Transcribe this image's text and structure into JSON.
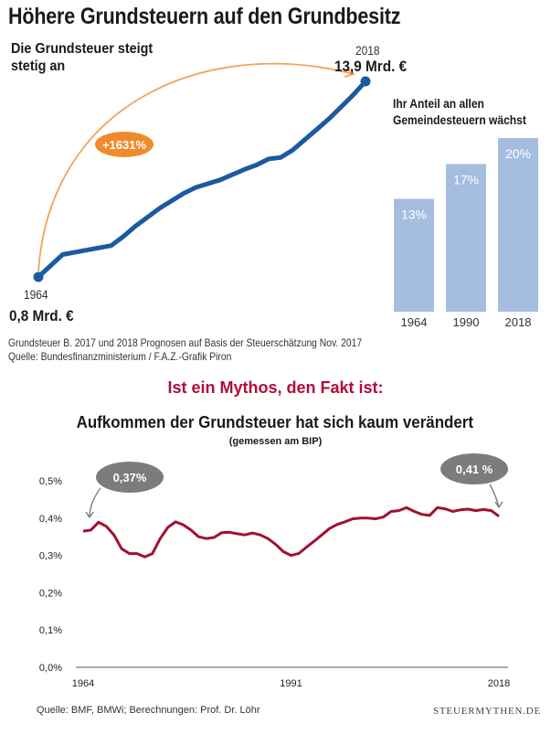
{
  "header": {
    "title": "Höhere Grundsteuern auf den Grundbesitz"
  },
  "chart_data": [
    {
      "type": "line",
      "title": "Die Grundsteuer steigt\nstetig an",
      "x": [
        1964,
        1968,
        1972,
        1976,
        1978,
        1980,
        1984,
        1988,
        1990,
        1994,
        1998,
        2000,
        2002,
        2004,
        2006,
        2008,
        2010,
        2012,
        2014,
        2016,
        2018
      ],
      "values": [
        0.8,
        2.3,
        2.6,
        2.9,
        3.5,
        4.2,
        5.4,
        6.4,
        6.8,
        7.3,
        8.0,
        8.3,
        8.7,
        8.8,
        9.3,
        10.0,
        10.7,
        11.4,
        12.2,
        13.0,
        13.9
      ],
      "unit": "Mrd. €",
      "start": {
        "year": "1964",
        "label": "0,8 Mrd. €"
      },
      "end": {
        "year": "2018",
        "label": "13,9 Mrd. €"
      },
      "annotation": "+1631%",
      "colors": {
        "line": "#1a5aa0",
        "arrow": "#f2a456",
        "badge": "#ef8b2c"
      }
    },
    {
      "type": "bar",
      "title": "Ihr Anteil an allen\nGemeindesteuern wächst",
      "categories": [
        "1964",
        "1990",
        "2018"
      ],
      "values": [
        13,
        17,
        20
      ],
      "labels": [
        "13%",
        "17%",
        "20%"
      ],
      "unit": "%",
      "colors": {
        "bar": "#a6bde2",
        "label": "#ffffff"
      }
    },
    {
      "type": "line",
      "title": "Aufkommen der Grundsteuer hat sich kaum verändert",
      "subtitle": "(gemessen am BIP)",
      "x": [
        1964,
        1965,
        1966,
        1967,
        1968,
        1969,
        1970,
        1971,
        1972,
        1973,
        1974,
        1975,
        1976,
        1977,
        1978,
        1979,
        1980,
        1981,
        1982,
        1983,
        1984,
        1985,
        1986,
        1987,
        1988,
        1989,
        1990,
        1991,
        1992,
        1993,
        1994,
        1995,
        1996,
        1997,
        1998,
        1999,
        2000,
        2001,
        2002,
        2003,
        2004,
        2005,
        2006,
        2007,
        2008,
        2009,
        2010,
        2011,
        2012,
        2013,
        2014,
        2015,
        2016,
        2017,
        2018
      ],
      "values": [
        0.365,
        0.368,
        0.389,
        0.378,
        0.355,
        0.318,
        0.305,
        0.305,
        0.296,
        0.305,
        0.345,
        0.375,
        0.39,
        0.382,
        0.368,
        0.35,
        0.345,
        0.348,
        0.361,
        0.362,
        0.358,
        0.355,
        0.36,
        0.355,
        0.345,
        0.33,
        0.31,
        0.3,
        0.305,
        0.322,
        0.338,
        0.355,
        0.372,
        0.383,
        0.39,
        0.398,
        0.4,
        0.4,
        0.398,
        0.403,
        0.418,
        0.42,
        0.428,
        0.418,
        0.41,
        0.407,
        0.428,
        0.425,
        0.418,
        0.422,
        0.424,
        0.42,
        0.423,
        0.42,
        0.405
      ],
      "yticks": [
        "0,0%",
        "0,1%",
        "0,2%",
        "0,3%",
        "0,4%",
        "0,5%"
      ],
      "xticks": [
        "1964",
        "1991",
        "2018"
      ],
      "ylim": [
        0,
        0.5
      ],
      "callouts": [
        {
          "label": "0,37%",
          "year": "1964"
        },
        {
          "label": "0,41 %",
          "year": "2018"
        }
      ],
      "colors": {
        "line": "#a3102f",
        "bubble": "#7c7c7c",
        "bubble_text": "#ffffff"
      }
    }
  ],
  "notes": {
    "text": "Grundsteuer B. 2017 und 2018 Prognosen auf Basis der Steuerschätzung Nov. 2017\nQuelle: Bundesfinanzministerium / F.A.Z.-Grafik Piron"
  },
  "myth": {
    "text": "Ist ein Mythos, den Fakt ist:"
  },
  "footer": {
    "source": "Quelle: BMF, BMWi; Berechnungen: Prof. Dr. Löhr",
    "brand_main": "STEUERMYTHEN",
    "brand_dot": ".",
    "brand_tld": "DE"
  }
}
